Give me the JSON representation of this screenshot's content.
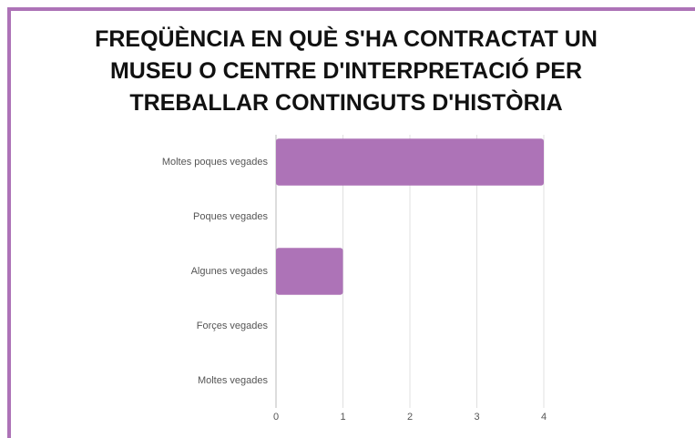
{
  "chart_data": {
    "type": "bar",
    "orientation": "horizontal",
    "title": "FREQÜÈNCIA EN QUÈ S'HA CONTRACTAT UN MUSEU O CENTRE D'INTERPRETACIÓ PER TREBALLAR CONTINGUTS D'HISTÒRIA",
    "categories": [
      "Moltes poques vegades",
      "Poques vegades",
      "Algunes vegades",
      "Forçes vegades",
      "Moltes vegades"
    ],
    "values": [
      4,
      0,
      1,
      0,
      0
    ],
    "color": "#ad73b7",
    "xlim": [
      0,
      4
    ],
    "xticks": [
      0,
      1,
      2,
      3,
      4
    ],
    "grid": true
  }
}
